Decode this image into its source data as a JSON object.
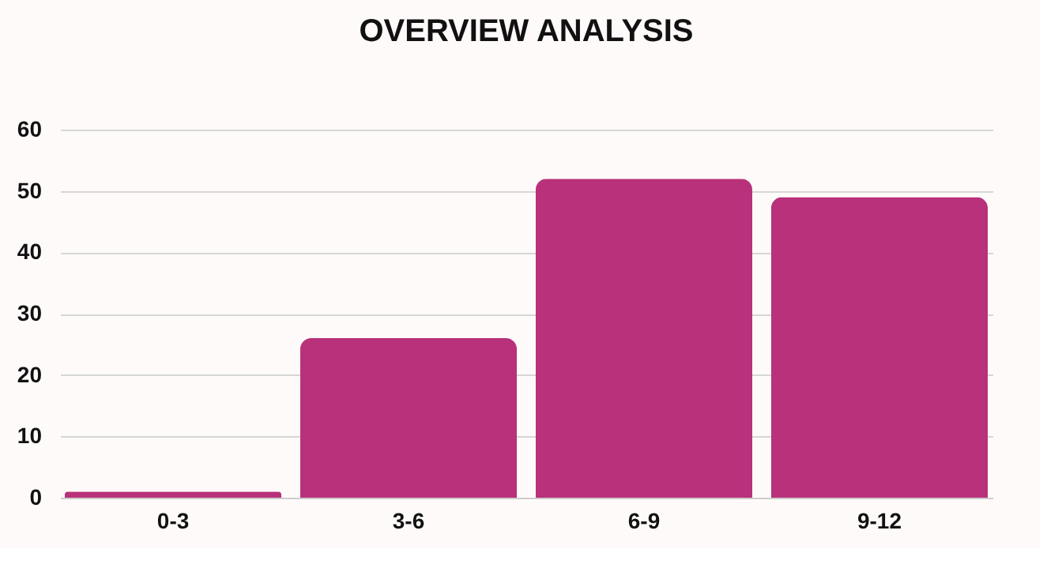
{
  "chart_data": {
    "type": "bar",
    "title": "OVERVIEW ANALYSIS",
    "categories": [
      "0-3",
      "3-6",
      "6-9",
      "9-12"
    ],
    "values": [
      1,
      26,
      52,
      49
    ],
    "color": "#b8317a",
    "ylim": [
      0,
      60
    ],
    "yticks": [
      0,
      10,
      20,
      30,
      40,
      50,
      60
    ],
    "grid": "y"
  }
}
